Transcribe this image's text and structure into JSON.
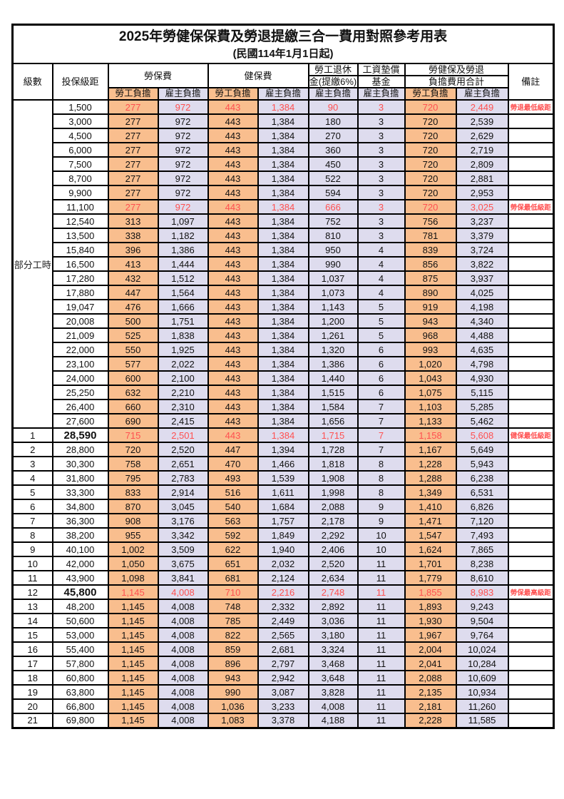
{
  "page": {
    "title": "2025年勞健保保費及勞退提繳三合一費用對照參考用表",
    "subtitle": "(民國114年1月1日起)"
  },
  "colors": {
    "employee_bg": "#F9BE8E",
    "employer_bg": "#DEDCEE",
    "highlight_text": "#FF5050",
    "border": "#000000"
  },
  "header": {
    "level": "級數",
    "salary_bracket": "投保級距",
    "labor_insurance": "勞保費",
    "health_insurance": "健保費",
    "pension_line1": "勞工退休",
    "pension_line2": "金(提繳6%)",
    "wage_fund_line1": "工資墊償",
    "wage_fund_line2": "基金",
    "total_line1": "勞健保及勞退",
    "total_line2": "負擔費用合計",
    "remark": "備註",
    "employee_label": "勞工負擔",
    "employer_label": "雇主負擔"
  },
  "part_time_label": "部分工時",
  "rows": [
    {
      "level": "",
      "salary": "1,500",
      "cells": [
        "277",
        "972",
        "443",
        "1,384",
        "90",
        "3",
        "720",
        "2,449"
      ],
      "remark": "勞退最低級距",
      "highlight": true,
      "bold_salary": false
    },
    {
      "level": "",
      "salary": "3,000",
      "cells": [
        "277",
        "972",
        "443",
        "1,384",
        "180",
        "3",
        "720",
        "2,539"
      ],
      "remark": "",
      "highlight": false,
      "bold_salary": false
    },
    {
      "level": "",
      "salary": "4,500",
      "cells": [
        "277",
        "972",
        "443",
        "1,384",
        "270",
        "3",
        "720",
        "2,629"
      ],
      "remark": "",
      "highlight": false,
      "bold_salary": false
    },
    {
      "level": "",
      "salary": "6,000",
      "cells": [
        "277",
        "972",
        "443",
        "1,384",
        "360",
        "3",
        "720",
        "2,719"
      ],
      "remark": "",
      "highlight": false,
      "bold_salary": false
    },
    {
      "level": "",
      "salary": "7,500",
      "cells": [
        "277",
        "972",
        "443",
        "1,384",
        "450",
        "3",
        "720",
        "2,809"
      ],
      "remark": "",
      "highlight": false,
      "bold_salary": false
    },
    {
      "level": "",
      "salary": "8,700",
      "cells": [
        "277",
        "972",
        "443",
        "1,384",
        "522",
        "3",
        "720",
        "2,881"
      ],
      "remark": "",
      "highlight": false,
      "bold_salary": false
    },
    {
      "level": "",
      "salary": "9,900",
      "cells": [
        "277",
        "972",
        "443",
        "1,384",
        "594",
        "3",
        "720",
        "2,953"
      ],
      "remark": "",
      "highlight": false,
      "bold_salary": false
    },
    {
      "level": "",
      "salary": "11,100",
      "cells": [
        "277",
        "972",
        "443",
        "1,384",
        "666",
        "3",
        "720",
        "3,025"
      ],
      "remark": "勞保最低級距",
      "highlight": true,
      "bold_salary": false
    },
    {
      "level": "",
      "salary": "12,540",
      "cells": [
        "313",
        "1,097",
        "443",
        "1,384",
        "752",
        "3",
        "756",
        "3,237"
      ],
      "remark": "",
      "highlight": false,
      "bold_salary": false
    },
    {
      "level": "",
      "salary": "13,500",
      "cells": [
        "338",
        "1,182",
        "443",
        "1,384",
        "810",
        "3",
        "781",
        "3,379"
      ],
      "remark": "",
      "highlight": false,
      "bold_salary": false
    },
    {
      "level": "",
      "salary": "15,840",
      "cells": [
        "396",
        "1,386",
        "443",
        "1,384",
        "950",
        "4",
        "839",
        "3,724"
      ],
      "remark": "",
      "highlight": false,
      "bold_salary": false
    },
    {
      "level": "",
      "salary": "16,500",
      "cells": [
        "413",
        "1,444",
        "443",
        "1,384",
        "990",
        "4",
        "856",
        "3,822"
      ],
      "remark": "",
      "highlight": false,
      "bold_salary": false
    },
    {
      "level": "",
      "salary": "17,280",
      "cells": [
        "432",
        "1,512",
        "443",
        "1,384",
        "1,037",
        "4",
        "875",
        "3,937"
      ],
      "remark": "",
      "highlight": false,
      "bold_salary": false
    },
    {
      "level": "",
      "salary": "17,880",
      "cells": [
        "447",
        "1,564",
        "443",
        "1,384",
        "1,073",
        "4",
        "890",
        "4,025"
      ],
      "remark": "",
      "highlight": false,
      "bold_salary": false
    },
    {
      "level": "",
      "salary": "19,047",
      "cells": [
        "476",
        "1,666",
        "443",
        "1,384",
        "1,143",
        "5",
        "919",
        "4,198"
      ],
      "remark": "",
      "highlight": false,
      "bold_salary": false
    },
    {
      "level": "",
      "salary": "20,008",
      "cells": [
        "500",
        "1,751",
        "443",
        "1,384",
        "1,200",
        "5",
        "943",
        "4,340"
      ],
      "remark": "",
      "highlight": false,
      "bold_salary": false
    },
    {
      "level": "",
      "salary": "21,009",
      "cells": [
        "525",
        "1,838",
        "443",
        "1,384",
        "1,261",
        "5",
        "968",
        "4,488"
      ],
      "remark": "",
      "highlight": false,
      "bold_salary": false
    },
    {
      "level": "",
      "salary": "22,000",
      "cells": [
        "550",
        "1,925",
        "443",
        "1,384",
        "1,320",
        "6",
        "993",
        "4,635"
      ],
      "remark": "",
      "highlight": false,
      "bold_salary": false
    },
    {
      "level": "",
      "salary": "23,100",
      "cells": [
        "577",
        "2,022",
        "443",
        "1,384",
        "1,386",
        "6",
        "1,020",
        "4,798"
      ],
      "remark": "",
      "highlight": false,
      "bold_salary": false
    },
    {
      "level": "",
      "salary": "24,000",
      "cells": [
        "600",
        "2,100",
        "443",
        "1,384",
        "1,440",
        "6",
        "1,043",
        "4,930"
      ],
      "remark": "",
      "highlight": false,
      "bold_salary": false
    },
    {
      "level": "",
      "salary": "25,250",
      "cells": [
        "632",
        "2,210",
        "443",
        "1,384",
        "1,515",
        "6",
        "1,075",
        "5,115"
      ],
      "remark": "",
      "highlight": false,
      "bold_salary": false
    },
    {
      "level": "",
      "salary": "26,400",
      "cells": [
        "660",
        "2,310",
        "443",
        "1,384",
        "1,584",
        "7",
        "1,103",
        "5,285"
      ],
      "remark": "",
      "highlight": false,
      "bold_salary": false
    },
    {
      "level": "",
      "salary": "27,600",
      "cells": [
        "690",
        "2,415",
        "443",
        "1,384",
        "1,656",
        "7",
        "1,133",
        "5,462"
      ],
      "remark": "",
      "highlight": false,
      "bold_salary": false
    },
    {
      "level": "1",
      "salary": "28,590",
      "cells": [
        "715",
        "2,501",
        "443",
        "1,384",
        "1,715",
        "7",
        "1,158",
        "5,608"
      ],
      "remark": "健保最低級距",
      "highlight": true,
      "bold_salary": true
    },
    {
      "level": "2",
      "salary": "28,800",
      "cells": [
        "720",
        "2,520",
        "447",
        "1,394",
        "1,728",
        "7",
        "1,167",
        "5,649"
      ],
      "remark": "",
      "highlight": false,
      "bold_salary": false
    },
    {
      "level": "3",
      "salary": "30,300",
      "cells": [
        "758",
        "2,651",
        "470",
        "1,466",
        "1,818",
        "8",
        "1,228",
        "5,943"
      ],
      "remark": "",
      "highlight": false,
      "bold_salary": false
    },
    {
      "level": "4",
      "salary": "31,800",
      "cells": [
        "795",
        "2,783",
        "493",
        "1,539",
        "1,908",
        "8",
        "1,288",
        "6,238"
      ],
      "remark": "",
      "highlight": false,
      "bold_salary": false
    },
    {
      "level": "5",
      "salary": "33,300",
      "cells": [
        "833",
        "2,914",
        "516",
        "1,611",
        "1,998",
        "8",
        "1,349",
        "6,531"
      ],
      "remark": "",
      "highlight": false,
      "bold_salary": false
    },
    {
      "level": "6",
      "salary": "34,800",
      "cells": [
        "870",
        "3,045",
        "540",
        "1,684",
        "2,088",
        "9",
        "1,410",
        "6,826"
      ],
      "remark": "",
      "highlight": false,
      "bold_salary": false
    },
    {
      "level": "7",
      "salary": "36,300",
      "cells": [
        "908",
        "3,176",
        "563",
        "1,757",
        "2,178",
        "9",
        "1,471",
        "7,120"
      ],
      "remark": "",
      "highlight": false,
      "bold_salary": false
    },
    {
      "level": "8",
      "salary": "38,200",
      "cells": [
        "955",
        "3,342",
        "592",
        "1,849",
        "2,292",
        "10",
        "1,547",
        "7,493"
      ],
      "remark": "",
      "highlight": false,
      "bold_salary": false
    },
    {
      "level": "9",
      "salary": "40,100",
      "cells": [
        "1,002",
        "3,509",
        "622",
        "1,940",
        "2,406",
        "10",
        "1,624",
        "7,865"
      ],
      "remark": "",
      "highlight": false,
      "bold_salary": false
    },
    {
      "level": "10",
      "salary": "42,000",
      "cells": [
        "1,050",
        "3,675",
        "651",
        "2,032",
        "2,520",
        "11",
        "1,701",
        "8,238"
      ],
      "remark": "",
      "highlight": false,
      "bold_salary": false
    },
    {
      "level": "11",
      "salary": "43,900",
      "cells": [
        "1,098",
        "3,841",
        "681",
        "2,124",
        "2,634",
        "11",
        "1,779",
        "8,610"
      ],
      "remark": "",
      "highlight": false,
      "bold_salary": false
    },
    {
      "level": "12",
      "salary": "45,800",
      "cells": [
        "1,145",
        "4,008",
        "710",
        "2,216",
        "2,748",
        "11",
        "1,855",
        "8,983"
      ],
      "remark": "勞保最高級距",
      "highlight": true,
      "bold_salary": true
    },
    {
      "level": "13",
      "salary": "48,200",
      "cells": [
        "1,145",
        "4,008",
        "748",
        "2,332",
        "2,892",
        "11",
        "1,893",
        "9,243"
      ],
      "remark": "",
      "highlight": false,
      "bold_salary": false
    },
    {
      "level": "14",
      "salary": "50,600",
      "cells": [
        "1,145",
        "4,008",
        "785",
        "2,449",
        "3,036",
        "11",
        "1,930",
        "9,504"
      ],
      "remark": "",
      "highlight": false,
      "bold_salary": false
    },
    {
      "level": "15",
      "salary": "53,000",
      "cells": [
        "1,145",
        "4,008",
        "822",
        "2,565",
        "3,180",
        "11",
        "1,967",
        "9,764"
      ],
      "remark": "",
      "highlight": false,
      "bold_salary": false
    },
    {
      "level": "16",
      "salary": "55,400",
      "cells": [
        "1,145",
        "4,008",
        "859",
        "2,681",
        "3,324",
        "11",
        "2,004",
        "10,024"
      ],
      "remark": "",
      "highlight": false,
      "bold_salary": false
    },
    {
      "level": "17",
      "salary": "57,800",
      "cells": [
        "1,145",
        "4,008",
        "896",
        "2,797",
        "3,468",
        "11",
        "2,041",
        "10,284"
      ],
      "remark": "",
      "highlight": false,
      "bold_salary": false
    },
    {
      "level": "18",
      "salary": "60,800",
      "cells": [
        "1,145",
        "4,008",
        "943",
        "2,942",
        "3,648",
        "11",
        "2,088",
        "10,609"
      ],
      "remark": "",
      "highlight": false,
      "bold_salary": false
    },
    {
      "level": "19",
      "salary": "63,800",
      "cells": [
        "1,145",
        "4,008",
        "990",
        "3,087",
        "3,828",
        "11",
        "2,135",
        "10,934"
      ],
      "remark": "",
      "highlight": false,
      "bold_salary": false
    },
    {
      "level": "20",
      "salary": "66,800",
      "cells": [
        "1,145",
        "4,008",
        "1,036",
        "3,233",
        "4,008",
        "11",
        "2,181",
        "11,260"
      ],
      "remark": "",
      "highlight": false,
      "bold_salary": false
    },
    {
      "level": "21",
      "salary": "69,800",
      "cells": [
        "1,145",
        "4,008",
        "1,083",
        "3,378",
        "4,188",
        "11",
        "2,228",
        "11,585"
      ],
      "remark": "",
      "highlight": false,
      "bold_salary": false
    }
  ]
}
